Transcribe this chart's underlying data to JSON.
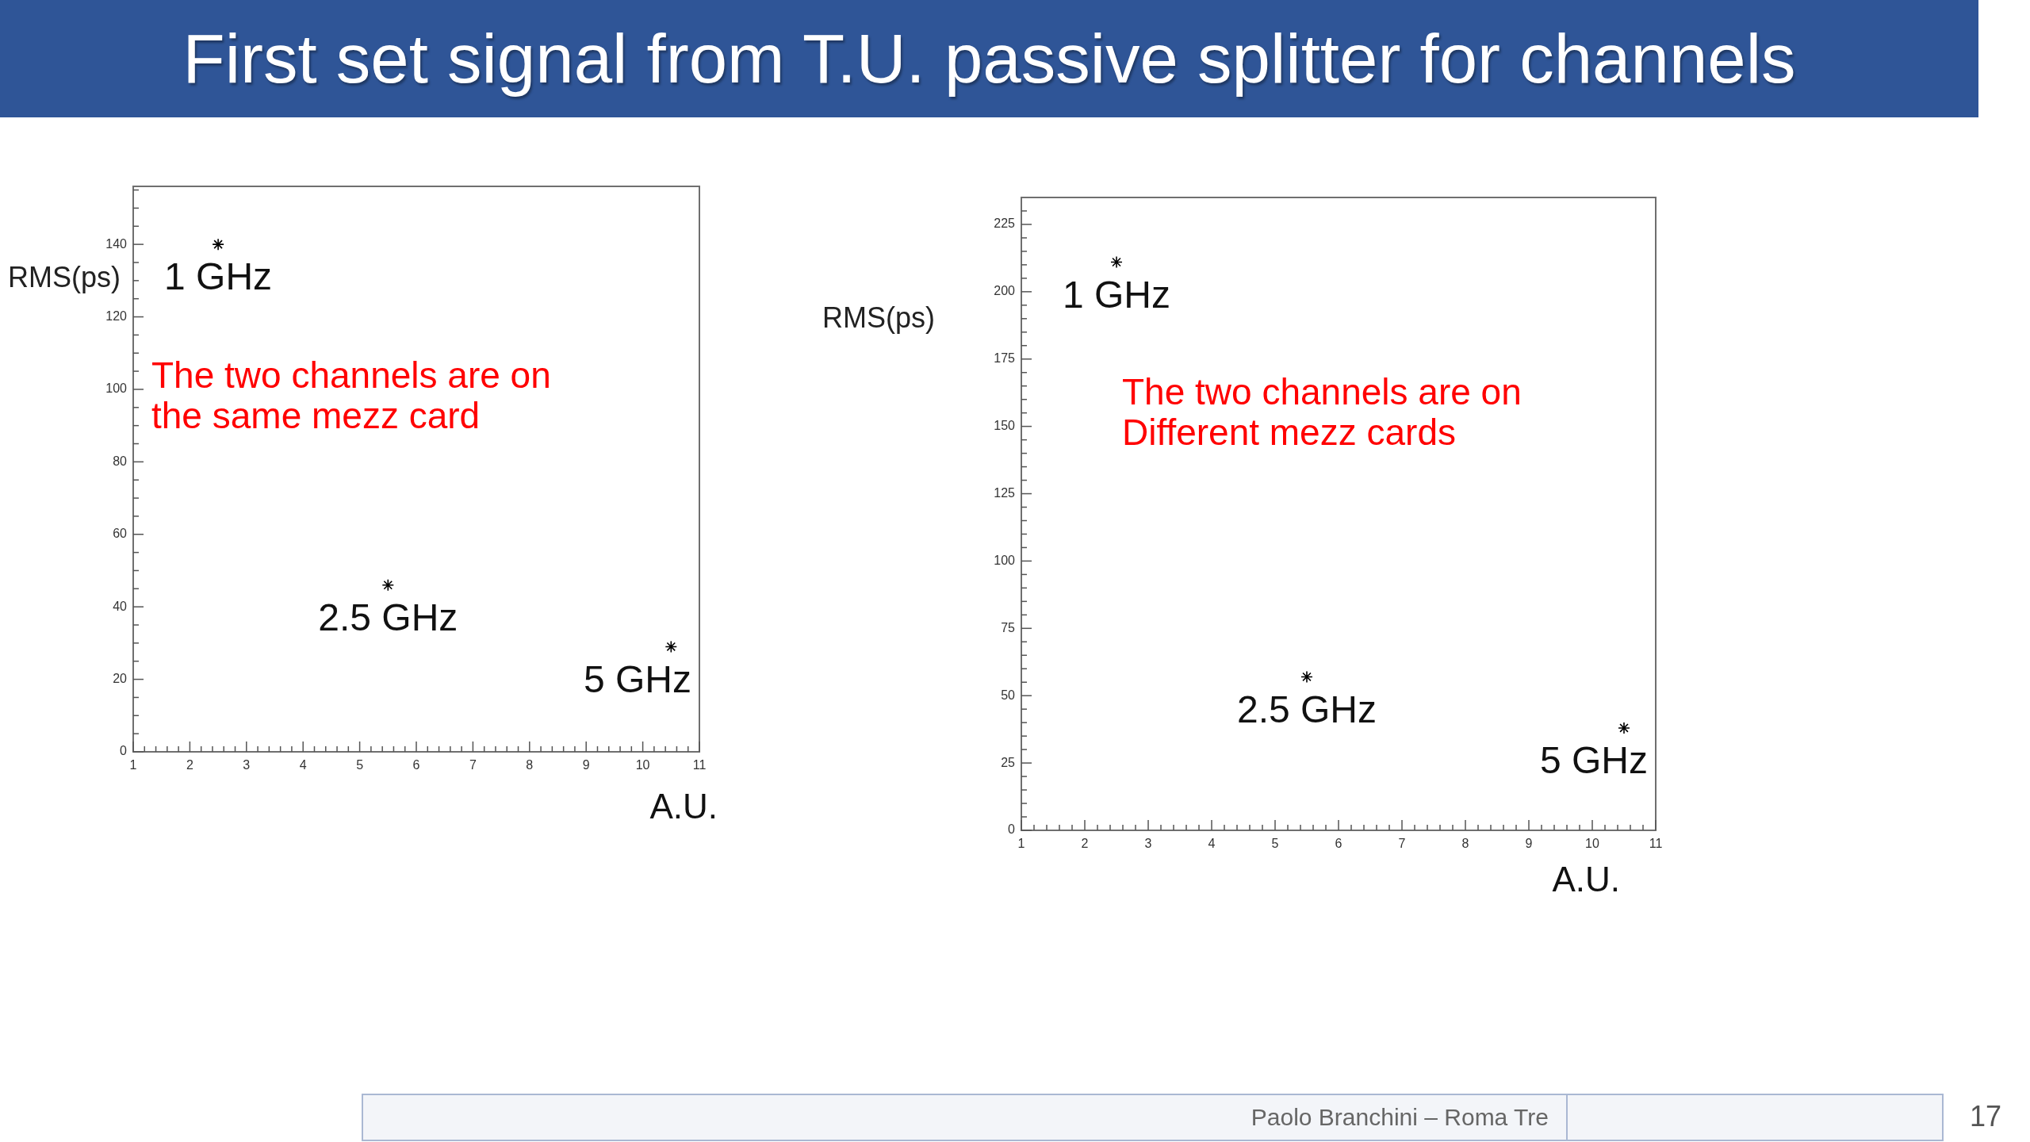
{
  "chart_data": [
    {
      "type": "scatter",
      "title": "First set signal from T.U. passive splitter for channels",
      "xlabel": "A.U.",
      "ylabel": "RMS(ps)",
      "x": [
        2.5,
        5.5,
        10.5
      ],
      "values": [
        140,
        46,
        29
      ],
      "color": "#000000",
      "marker": "cross",
      "xlim": [
        1,
        11
      ],
      "xticks": [
        1,
        {
          "value": 1.2,
          "label": null
        },
        {
          "value": 1.4,
          "label": null
        },
        {
          "value": 1.6,
          "label": null
        },
        {
          "value": 1.8,
          "label": null
        },
        2,
        {
          "value": 2.2,
          "label": null
        },
        {
          "value": 2.4,
          "label": null
        },
        {
          "value": 2.6,
          "label": null
        },
        {
          "value": 2.8,
          "label": null
        },
        3,
        {
          "value": 3.2,
          "label": null
        },
        {
          "value": 3.4,
          "label": null
        },
        {
          "value": 3.6,
          "label": null
        },
        {
          "value": 3.8,
          "label": null
        },
        4,
        {
          "value": 4.2,
          "label": null
        },
        {
          "value": 4.4,
          "label": null
        },
        {
          "value": 4.6,
          "label": null
        },
        {
          "value": 4.8,
          "label": null
        },
        5,
        {
          "value": 5.2,
          "label": null
        },
        {
          "value": 5.4,
          "label": null
        },
        {
          "value": 5.6,
          "label": null
        },
        {
          "value": 5.8,
          "label": null
        },
        6,
        {
          "value": 6.2,
          "label": null
        },
        {
          "value": 6.4,
          "label": null
        },
        {
          "value": 6.6,
          "label": null
        },
        {
          "value": 6.8,
          "label": null
        },
        7,
        {
          "value": 7.2,
          "label": null
        },
        {
          "value": 7.4,
          "label": null
        },
        {
          "value": 7.6,
          "label": null
        },
        {
          "value": 7.8,
          "label": null
        },
        8,
        {
          "value": 8.2,
          "label": null
        },
        {
          "value": 8.4,
          "label": null
        },
        {
          "value": 8.6,
          "label": null
        },
        {
          "value": 8.8,
          "label": null
        },
        9,
        {
          "value": 9.2,
          "label": null
        },
        {
          "value": 9.4,
          "label": null
        },
        {
          "value": 9.6,
          "label": null
        },
        {
          "value": 9.8,
          "label": null
        },
        10,
        {
          "value": 10.2,
          "label": null
        },
        {
          "value": 10.4,
          "label": null
        },
        {
          "value": 10.6,
          "label": null
        },
        {
          "value": 10.8,
          "label": null
        },
        11
      ],
      "ylim": [
        0,
        156
      ],
      "yticks": [
        0,
        {
          "value": 5,
          "label": null
        },
        {
          "value": 10,
          "label": null
        },
        {
          "value": 15,
          "label": null
        },
        20,
        {
          "value": 25,
          "label": null
        },
        {
          "value": 30,
          "label": null
        },
        {
          "value": 35,
          "label": null
        },
        40,
        {
          "value": 45,
          "label": null
        },
        {
          "value": 50,
          "label": null
        },
        {
          "value": 55,
          "label": null
        },
        60,
        {
          "value": 65,
          "label": null
        },
        {
          "value": 70,
          "label": null
        },
        {
          "value": 75,
          "label": null
        },
        80,
        {
          "value": 85,
          "label": null
        },
        {
          "value": 90,
          "label": null
        },
        {
          "value": 95,
          "label": null
        },
        100,
        {
          "value": 105,
          "label": null
        },
        {
          "value": 110,
          "label": null
        },
        {
          "value": 115,
          "label": null
        },
        120,
        {
          "value": 125,
          "label": null
        },
        {
          "value": 130,
          "label": null
        },
        {
          "value": 135,
          "label": null
        },
        140,
        {
          "value": 145,
          "label": null
        },
        {
          "value": 150,
          "label": null
        },
        {
          "value": 155,
          "label": null
        }
      ],
      "annotations": [
        "The two channels are on the same mezz card",
        {
          "text": "1 GHz",
          "x": 2.5,
          "y": 140
        },
        {
          "text": "2.5 GHz",
          "x": 5.5,
          "y": 46
        },
        {
          "text": "5 GHz",
          "x": 10.5,
          "y": 29
        }
      ]
    },
    {
      "type": "scatter",
      "xlabel": "A.U.",
      "ylabel": "RMS(ps)",
      "x": [
        2.5,
        5.5,
        10.5
      ],
      "values": [
        211,
        57,
        38
      ],
      "color": "#000000",
      "marker": "cross",
      "xlim": [
        1,
        11
      ],
      "xticks": [
        1,
        {
          "value": 1.2,
          "label": null
        },
        {
          "value": 1.4,
          "label": null
        },
        {
          "value": 1.6,
          "label": null
        },
        {
          "value": 1.8,
          "label": null
        },
        2,
        {
          "value": 2.2,
          "label": null
        },
        {
          "value": 2.4,
          "label": null
        },
        {
          "value": 2.6,
          "label": null
        },
        {
          "value": 2.8,
          "label": null
        },
        3,
        {
          "value": 3.2,
          "label": null
        },
        {
          "value": 3.4,
          "label": null
        },
        {
          "value": 3.6,
          "label": null
        },
        {
          "value": 3.8,
          "label": null
        },
        4,
        {
          "value": 4.2,
          "label": null
        },
        {
          "value": 4.4,
          "label": null
        },
        {
          "value": 4.6,
          "label": null
        },
        {
          "value": 4.8,
          "label": null
        },
        5,
        {
          "value": 5.2,
          "label": null
        },
        {
          "value": 5.4,
          "label": null
        },
        {
          "value": 5.6,
          "label": null
        },
        {
          "value": 5.8,
          "label": null
        },
        6,
        {
          "value": 6.2,
          "label": null
        },
        {
          "value": 6.4,
          "label": null
        },
        {
          "value": 6.6,
          "label": null
        },
        {
          "value": 6.8,
          "label": null
        },
        7,
        {
          "value": 7.2,
          "label": null
        },
        {
          "value": 7.4,
          "label": null
        },
        {
          "value": 7.6,
          "label": null
        },
        {
          "value": 7.8,
          "label": null
        },
        8,
        {
          "value": 8.2,
          "label": null
        },
        {
          "value": 8.4,
          "label": null
        },
        {
          "value": 8.6,
          "label": null
        },
        {
          "value": 8.8,
          "label": null
        },
        9,
        {
          "value": 9.2,
          "label": null
        },
        {
          "value": 9.4,
          "label": null
        },
        {
          "value": 9.6,
          "label": null
        },
        {
          "value": 9.8,
          "label": null
        },
        10,
        {
          "value": 10.2,
          "label": null
        },
        {
          "value": 10.4,
          "label": null
        },
        {
          "value": 10.6,
          "label": null
        },
        {
          "value": 10.8,
          "label": null
        },
        11
      ],
      "ylim": [
        0,
        235
      ],
      "yticks": [
        0,
        {
          "value": 5,
          "label": null
        },
        {
          "value": 10,
          "label": null
        },
        {
          "value": 15,
          "label": null
        },
        {
          "value": 20,
          "label": null
        },
        25,
        {
          "value": 30,
          "label": null
        },
        {
          "value": 35,
          "label": null
        },
        {
          "value": 40,
          "label": null
        },
        {
          "value": 45,
          "label": null
        },
        50,
        {
          "value": 55,
          "label": null
        },
        {
          "value": 60,
          "label": null
        },
        {
          "value": 65,
          "label": null
        },
        {
          "value": 70,
          "label": null
        },
        75,
        {
          "value": 80,
          "label": null
        },
        {
          "value": 85,
          "label": null
        },
        {
          "value": 90,
          "label": null
        },
        {
          "value": 95,
          "label": null
        },
        100,
        {
          "value": 105,
          "label": null
        },
        {
          "value": 110,
          "label": null
        },
        {
          "value": 115,
          "label": null
        },
        {
          "value": 120,
          "label": null
        },
        125,
        {
          "value": 130,
          "label": null
        },
        {
          "value": 135,
          "label": null
        },
        {
          "value": 140,
          "label": null
        },
        {
          "value": 145,
          "label": null
        },
        150,
        {
          "value": 155,
          "label": null
        },
        {
          "value": 160,
          "label": null
        },
        {
          "value": 165,
          "label": null
        },
        {
          "value": 170,
          "label": null
        },
        175,
        {
          "value": 180,
          "label": null
        },
        {
          "value": 185,
          "label": null
        },
        {
          "value": 190,
          "label": null
        },
        {
          "value": 195,
          "label": null
        },
        200,
        {
          "value": 205,
          "label": null
        },
        {
          "value": 210,
          "label": null
        },
        {
          "value": 215,
          "label": null
        },
        {
          "value": 220,
          "label": null
        },
        225,
        {
          "value": 230,
          "label": null
        }
      ],
      "annotations": [
        "The two channels are on Different mezz cards",
        {
          "text": "1 GHz",
          "x": 2.5,
          "y": 211
        },
        {
          "text": "2.5 GHz",
          "x": 5.5,
          "y": 57
        },
        {
          "text": "5 GHz",
          "x": 10.5,
          "y": 38
        },
        "Paolo Branchini – Roma Tre",
        "17"
      ]
    }
  ]
}
